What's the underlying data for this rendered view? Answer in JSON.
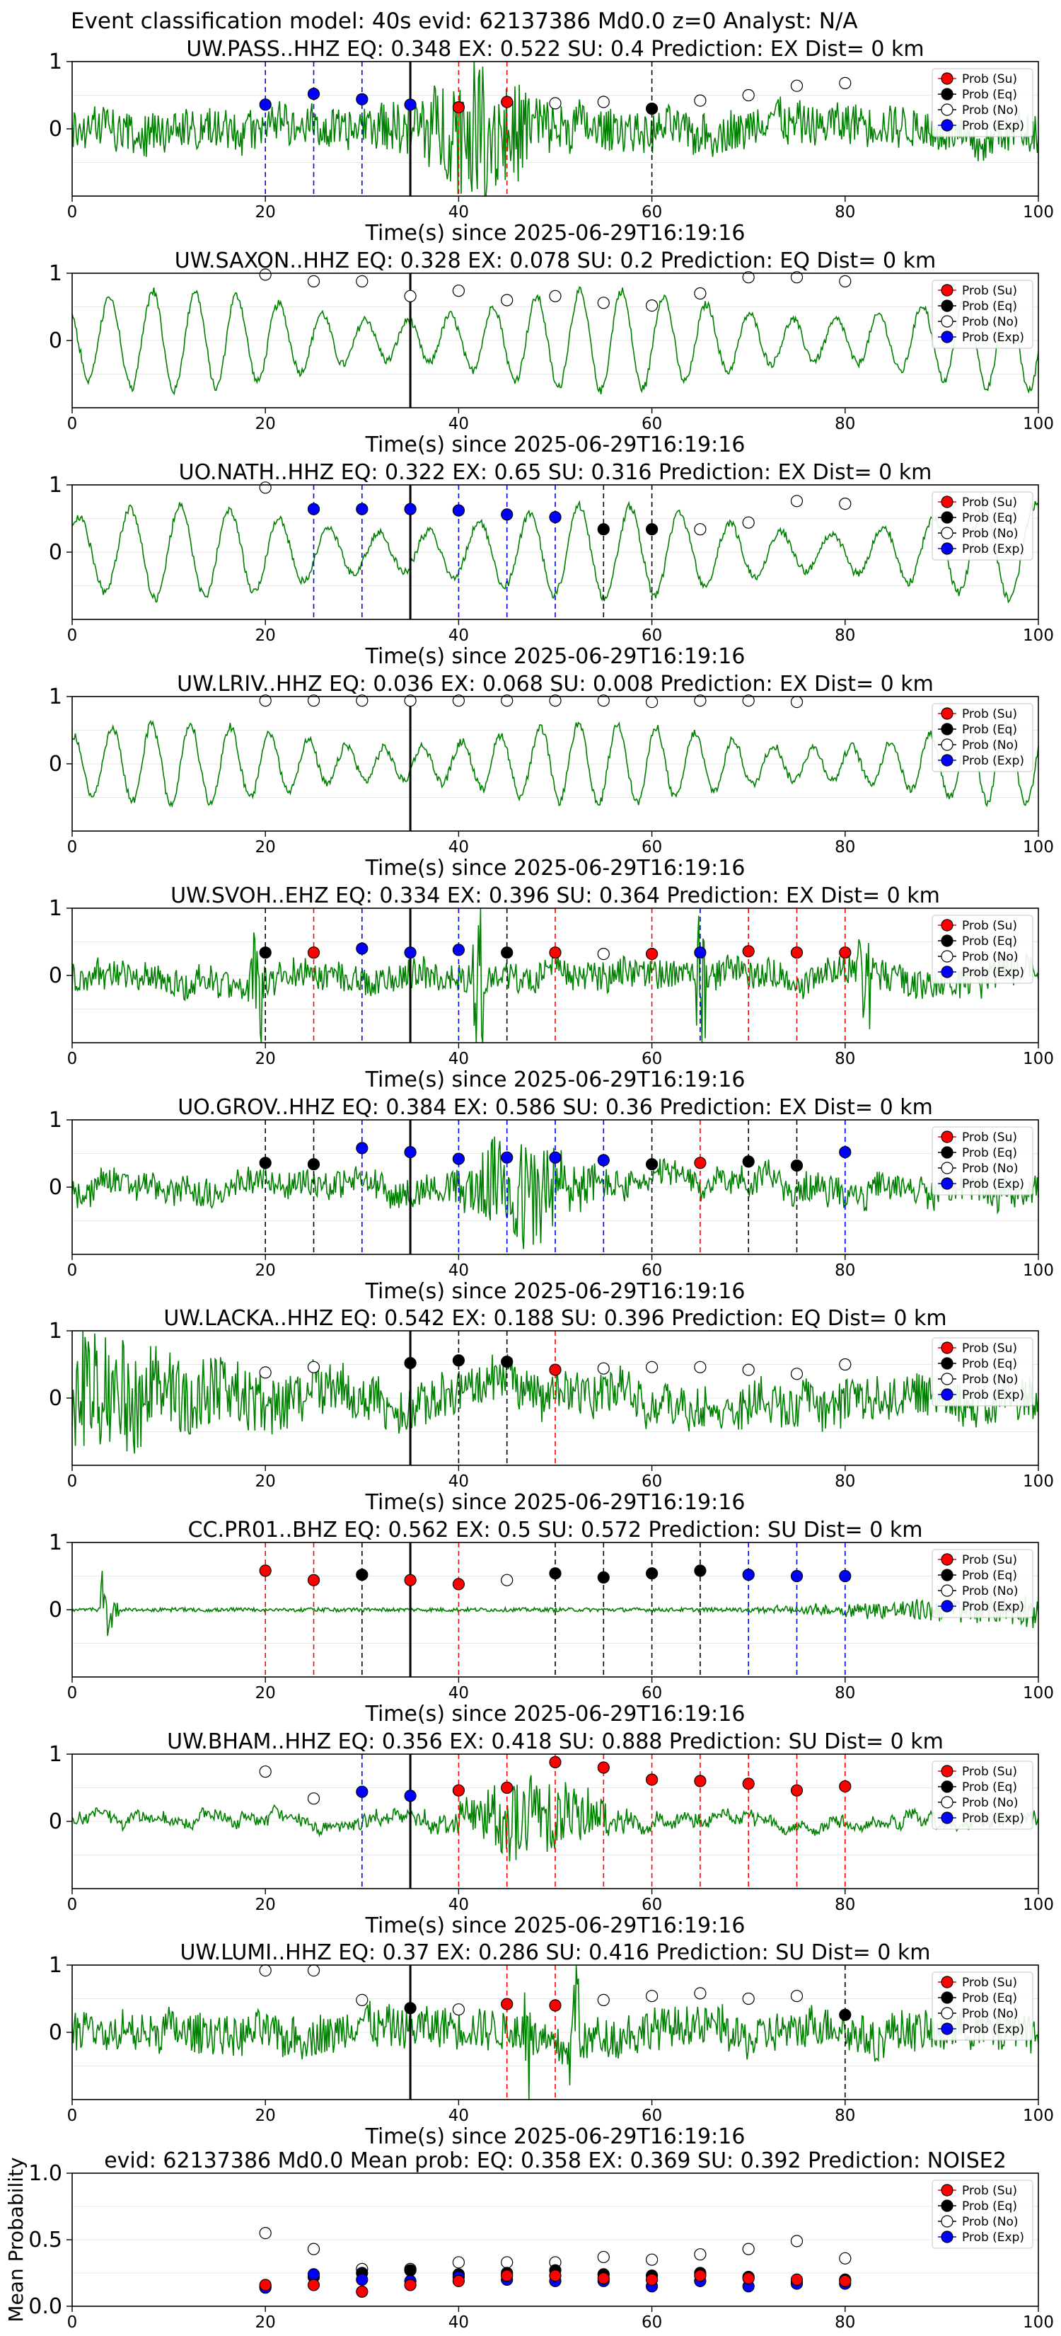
{
  "figure": {
    "suptitle": "Event classification model: 40s evid: 62137386 Md0.0 z=0 Analyst: N/A",
    "xlabel": "Time(s) since 2025-06-29T16:19:16"
  },
  "legend": {
    "su": "Prob (Su)",
    "eq": "Prob (Eq)",
    "no": "Prob (No)",
    "exp": "Prob (Exp)"
  },
  "colors": {
    "trace": "#008000",
    "su": "#ff0000",
    "eq": "#000000",
    "no": "#ffffff",
    "exp": "#0000ff",
    "vline_su": "#ff0000",
    "vline_eq": "#000000",
    "vline_exp": "#0000ff",
    "onset": "#000000"
  },
  "chart_data": [
    {
      "type": "line",
      "title": "UW.PASS..HHZ   EQ: 0.348   EX: 0.522   SU: 0.4   Prediction: EX    Dist= 0 km",
      "xlim": [
        0,
        100
      ],
      "xticks": [
        0,
        20,
        40,
        60,
        80,
        100
      ],
      "ylim": [
        -1,
        1
      ],
      "yticks": [
        0,
        1
      ],
      "onset": 35,
      "trace": {
        "seed": 11,
        "style": "burst",
        "amp": 0.3,
        "burst_center": 42,
        "burst_width": 6,
        "burst_gain": 2.4
      },
      "points": [
        {
          "x": 20,
          "y": 0.36,
          "cls": "exp"
        },
        {
          "x": 25,
          "y": 0.52,
          "cls": "exp"
        },
        {
          "x": 30,
          "y": 0.44,
          "cls": "exp"
        },
        {
          "x": 35,
          "y": 0.36,
          "cls": "exp"
        },
        {
          "x": 40,
          "y": 0.32,
          "cls": "su"
        },
        {
          "x": 45,
          "y": 0.4,
          "cls": "su"
        },
        {
          "x": 50,
          "y": 0.38,
          "cls": "no"
        },
        {
          "x": 55,
          "y": 0.4,
          "cls": "no"
        },
        {
          "x": 60,
          "y": 0.3,
          "cls": "eq"
        },
        {
          "x": 65,
          "y": 0.42,
          "cls": "no"
        },
        {
          "x": 70,
          "y": 0.5,
          "cls": "no"
        },
        {
          "x": 75,
          "y": 0.64,
          "cls": "no"
        },
        {
          "x": 80,
          "y": 0.68,
          "cls": "no"
        }
      ]
    },
    {
      "type": "line",
      "title": "UW.SAXON..HHZ   EQ: 0.328   EX: 0.078   SU: 0.2   Prediction: EQ    Dist= 0 km",
      "xlim": [
        0,
        100
      ],
      "xticks": [
        0,
        20,
        40,
        60,
        80,
        100
      ],
      "ylim": [
        -1,
        1
      ],
      "yticks": [
        0,
        1
      ],
      "onset": 35,
      "trace": {
        "seed": 23,
        "style": "wave",
        "amp": 0.75,
        "period": 4.4
      },
      "points": [
        {
          "x": 20,
          "y": 0.98,
          "cls": "no"
        },
        {
          "x": 25,
          "y": 0.88,
          "cls": "no"
        },
        {
          "x": 30,
          "y": 0.88,
          "cls": "no"
        },
        {
          "x": 35,
          "y": 0.66,
          "cls": "no"
        },
        {
          "x": 40,
          "y": 0.74,
          "cls": "no"
        },
        {
          "x": 45,
          "y": 0.6,
          "cls": "no"
        },
        {
          "x": 50,
          "y": 0.66,
          "cls": "no"
        },
        {
          "x": 55,
          "y": 0.56,
          "cls": "no"
        },
        {
          "x": 60,
          "y": 0.52,
          "cls": "no"
        },
        {
          "x": 65,
          "y": 0.7,
          "cls": "no"
        },
        {
          "x": 70,
          "y": 0.94,
          "cls": "no"
        },
        {
          "x": 75,
          "y": 0.94,
          "cls": "no"
        },
        {
          "x": 80,
          "y": 0.88,
          "cls": "no"
        }
      ]
    },
    {
      "type": "line",
      "title": "UO.NATH..HHZ   EQ: 0.322   EX: 0.65   SU: 0.316   Prediction: EX    Dist= 0 km",
      "xlim": [
        0,
        100
      ],
      "xticks": [
        0,
        20,
        40,
        60,
        80,
        100
      ],
      "ylim": [
        -1,
        1
      ],
      "yticks": [
        0,
        1
      ],
      "onset": 35,
      "trace": {
        "seed": 37,
        "style": "wave",
        "amp": 0.7,
        "period": 5.2
      },
      "points": [
        {
          "x": 20,
          "y": 0.96,
          "cls": "no"
        },
        {
          "x": 25,
          "y": 0.64,
          "cls": "exp"
        },
        {
          "x": 30,
          "y": 0.64,
          "cls": "exp"
        },
        {
          "x": 35,
          "y": 0.64,
          "cls": "exp"
        },
        {
          "x": 40,
          "y": 0.62,
          "cls": "exp"
        },
        {
          "x": 45,
          "y": 0.56,
          "cls": "exp"
        },
        {
          "x": 50,
          "y": 0.52,
          "cls": "exp"
        },
        {
          "x": 55,
          "y": 0.34,
          "cls": "eq"
        },
        {
          "x": 60,
          "y": 0.34,
          "cls": "eq"
        },
        {
          "x": 65,
          "y": 0.34,
          "cls": "no"
        },
        {
          "x": 70,
          "y": 0.44,
          "cls": "no"
        },
        {
          "x": 75,
          "y": 0.76,
          "cls": "no"
        },
        {
          "x": 80,
          "y": 0.72,
          "cls": "no"
        }
      ]
    },
    {
      "type": "line",
      "title": "UW.LRIV..HHZ   EQ: 0.036   EX: 0.068   SU: 0.008   Prediction: EX    Dist= 0 km",
      "xlim": [
        0,
        100
      ],
      "xticks": [
        0,
        20,
        40,
        60,
        80,
        100
      ],
      "ylim": [
        -1,
        1
      ],
      "yticks": [
        0,
        1
      ],
      "onset": 35,
      "trace": {
        "seed": 41,
        "style": "wave",
        "amp": 0.6,
        "period": 4.0
      },
      "points": [
        {
          "x": 20,
          "y": 0.94,
          "cls": "no"
        },
        {
          "x": 25,
          "y": 0.94,
          "cls": "no"
        },
        {
          "x": 30,
          "y": 0.94,
          "cls": "no"
        },
        {
          "x": 35,
          "y": 0.94,
          "cls": "no"
        },
        {
          "x": 40,
          "y": 0.94,
          "cls": "no"
        },
        {
          "x": 45,
          "y": 0.94,
          "cls": "no"
        },
        {
          "x": 50,
          "y": 0.94,
          "cls": "no"
        },
        {
          "x": 55,
          "y": 0.94,
          "cls": "no"
        },
        {
          "x": 60,
          "y": 0.92,
          "cls": "no"
        },
        {
          "x": 65,
          "y": 0.94,
          "cls": "no"
        },
        {
          "x": 70,
          "y": 0.94,
          "cls": "no"
        },
        {
          "x": 75,
          "y": 0.92,
          "cls": "no"
        }
      ]
    },
    {
      "type": "line",
      "title": "UW.SVOH..EHZ   EQ: 0.334   EX: 0.396   SU: 0.364   Prediction: EX    Dist= 0 km",
      "xlim": [
        0,
        100
      ],
      "xticks": [
        0,
        20,
        40,
        60,
        80,
        100
      ],
      "ylim": [
        -1,
        1
      ],
      "yticks": [
        0,
        1
      ],
      "onset": 35,
      "trace": {
        "seed": 53,
        "style": "noise",
        "amp": 0.22,
        "spikes": [
          19,
          42,
          65,
          82
        ]
      },
      "points": [
        {
          "x": 20,
          "y": 0.34,
          "cls": "eq"
        },
        {
          "x": 25,
          "y": 0.34,
          "cls": "su"
        },
        {
          "x": 30,
          "y": 0.4,
          "cls": "exp"
        },
        {
          "x": 35,
          "y": 0.34,
          "cls": "exp"
        },
        {
          "x": 40,
          "y": 0.38,
          "cls": "exp"
        },
        {
          "x": 45,
          "y": 0.34,
          "cls": "eq"
        },
        {
          "x": 50,
          "y": 0.34,
          "cls": "su"
        },
        {
          "x": 55,
          "y": 0.32,
          "cls": "no"
        },
        {
          "x": 60,
          "y": 0.32,
          "cls": "su"
        },
        {
          "x": 65,
          "y": 0.34,
          "cls": "exp"
        },
        {
          "x": 70,
          "y": 0.36,
          "cls": "su"
        },
        {
          "x": 75,
          "y": 0.34,
          "cls": "su"
        },
        {
          "x": 80,
          "y": 0.34,
          "cls": "su"
        }
      ]
    },
    {
      "type": "line",
      "title": "UO.GROV..HHZ   EQ: 0.384   EX: 0.586   SU: 0.36   Prediction: EX    Dist= 0 km",
      "xlim": [
        0,
        100
      ],
      "xticks": [
        0,
        20,
        40,
        60,
        80,
        100
      ],
      "ylim": [
        -1,
        1
      ],
      "yticks": [
        0,
        1
      ],
      "onset": 35,
      "trace": {
        "seed": 67,
        "style": "burst",
        "amp": 0.2,
        "burst_center": 47,
        "burst_width": 5,
        "burst_gain": 3.5
      },
      "points": [
        {
          "x": 20,
          "y": 0.36,
          "cls": "eq"
        },
        {
          "x": 25,
          "y": 0.34,
          "cls": "eq"
        },
        {
          "x": 30,
          "y": 0.58,
          "cls": "exp"
        },
        {
          "x": 35,
          "y": 0.52,
          "cls": "exp"
        },
        {
          "x": 40,
          "y": 0.42,
          "cls": "exp"
        },
        {
          "x": 45,
          "y": 0.44,
          "cls": "exp"
        },
        {
          "x": 50,
          "y": 0.44,
          "cls": "exp"
        },
        {
          "x": 55,
          "y": 0.4,
          "cls": "exp"
        },
        {
          "x": 60,
          "y": 0.34,
          "cls": "eq"
        },
        {
          "x": 65,
          "y": 0.36,
          "cls": "su"
        },
        {
          "x": 70,
          "y": 0.38,
          "cls": "eq"
        },
        {
          "x": 75,
          "y": 0.32,
          "cls": "eq"
        },
        {
          "x": 80,
          "y": 0.52,
          "cls": "exp"
        }
      ]
    },
    {
      "type": "line",
      "title": "UW.LACKA..HHZ   EQ: 0.542   EX: 0.188   SU: 0.396   Prediction: EQ    Dist= 0 km",
      "xlim": [
        0,
        100
      ],
      "xticks": [
        0,
        20,
        40,
        60,
        80,
        100
      ],
      "ylim": [
        -1,
        1
      ],
      "yticks": [
        0,
        1
      ],
      "onset": 35,
      "trace": {
        "seed": 79,
        "style": "decay",
        "amp": 0.7
      },
      "points": [
        {
          "x": 20,
          "y": 0.38,
          "cls": "no"
        },
        {
          "x": 25,
          "y": 0.46,
          "cls": "no"
        },
        {
          "x": 35,
          "y": 0.52,
          "cls": "eq"
        },
        {
          "x": 40,
          "y": 0.56,
          "cls": "eq"
        },
        {
          "x": 45,
          "y": 0.54,
          "cls": "eq"
        },
        {
          "x": 50,
          "y": 0.42,
          "cls": "su"
        },
        {
          "x": 55,
          "y": 0.44,
          "cls": "no"
        },
        {
          "x": 60,
          "y": 0.46,
          "cls": "no"
        },
        {
          "x": 65,
          "y": 0.46,
          "cls": "no"
        },
        {
          "x": 70,
          "y": 0.42,
          "cls": "no"
        },
        {
          "x": 75,
          "y": 0.36,
          "cls": "no"
        },
        {
          "x": 80,
          "y": 0.5,
          "cls": "no"
        }
      ]
    },
    {
      "type": "line",
      "title": "CC.PR01..BHZ   EQ: 0.562   EX: 0.5   SU: 0.572   Prediction: SU    Dist= 0 km",
      "xlim": [
        0,
        100
      ],
      "xticks": [
        0,
        20,
        40,
        60,
        80,
        100
      ],
      "ylim": [
        -1,
        1
      ],
      "yticks": [
        0,
        1
      ],
      "onset": 35,
      "trace": {
        "seed": 83,
        "style": "flat",
        "amp": 0.03
      },
      "points": [
        {
          "x": 20,
          "y": 0.58,
          "cls": "su"
        },
        {
          "x": 25,
          "y": 0.44,
          "cls": "su"
        },
        {
          "x": 30,
          "y": 0.52,
          "cls": "eq"
        },
        {
          "x": 35,
          "y": 0.44,
          "cls": "su"
        },
        {
          "x": 40,
          "y": 0.38,
          "cls": "su"
        },
        {
          "x": 45,
          "y": 0.44,
          "cls": "no"
        },
        {
          "x": 50,
          "y": 0.54,
          "cls": "eq"
        },
        {
          "x": 55,
          "y": 0.48,
          "cls": "eq"
        },
        {
          "x": 60,
          "y": 0.54,
          "cls": "eq"
        },
        {
          "x": 65,
          "y": 0.58,
          "cls": "eq"
        },
        {
          "x": 70,
          "y": 0.52,
          "cls": "exp"
        },
        {
          "x": 75,
          "y": 0.5,
          "cls": "exp"
        },
        {
          "x": 80,
          "y": 0.5,
          "cls": "exp"
        }
      ]
    },
    {
      "type": "line",
      "title": "UW.BHAM..HHZ   EQ: 0.356   EX: 0.418   SU: 0.888   Prediction: SU    Dist= 0 km",
      "xlim": [
        0,
        100
      ],
      "xticks": [
        0,
        20,
        40,
        60,
        80,
        100
      ],
      "ylim": [
        -1,
        1
      ],
      "yticks": [
        0,
        1
      ],
      "onset": 35,
      "trace": {
        "seed": 97,
        "style": "burst",
        "amp": 0.08,
        "burst_center": 48,
        "burst_width": 7,
        "burst_gain": 7
      },
      "points": [
        {
          "x": 20,
          "y": 0.74,
          "cls": "no"
        },
        {
          "x": 25,
          "y": 0.34,
          "cls": "no"
        },
        {
          "x": 30,
          "y": 0.44,
          "cls": "exp"
        },
        {
          "x": 35,
          "y": 0.38,
          "cls": "exp"
        },
        {
          "x": 40,
          "y": 0.46,
          "cls": "su"
        },
        {
          "x": 45,
          "y": 0.5,
          "cls": "su"
        },
        {
          "x": 50,
          "y": 0.88,
          "cls": "su"
        },
        {
          "x": 55,
          "y": 0.8,
          "cls": "su"
        },
        {
          "x": 60,
          "y": 0.62,
          "cls": "su"
        },
        {
          "x": 65,
          "y": 0.6,
          "cls": "su"
        },
        {
          "x": 70,
          "y": 0.56,
          "cls": "su"
        },
        {
          "x": 75,
          "y": 0.46,
          "cls": "su"
        },
        {
          "x": 80,
          "y": 0.52,
          "cls": "su"
        }
      ]
    },
    {
      "type": "line",
      "title": "UW.LUMI..HHZ   EQ: 0.37   EX: 0.286   SU: 0.416   Prediction: SU    Dist= 0 km",
      "xlim": [
        0,
        100
      ],
      "xticks": [
        0,
        20,
        40,
        60,
        80,
        100
      ],
      "ylim": [
        -1,
        1
      ],
      "yticks": [
        0,
        1
      ],
      "onset": 35,
      "trace": {
        "seed": 103,
        "style": "noise",
        "amp": 0.3,
        "spikes": [
          47,
          52
        ]
      },
      "points": [
        {
          "x": 20,
          "y": 0.92,
          "cls": "no"
        },
        {
          "x": 25,
          "y": 0.92,
          "cls": "no"
        },
        {
          "x": 30,
          "y": 0.48,
          "cls": "no"
        },
        {
          "x": 35,
          "y": 0.36,
          "cls": "eq"
        },
        {
          "x": 40,
          "y": 0.34,
          "cls": "no"
        },
        {
          "x": 45,
          "y": 0.42,
          "cls": "su"
        },
        {
          "x": 50,
          "y": 0.4,
          "cls": "su"
        },
        {
          "x": 55,
          "y": 0.48,
          "cls": "no"
        },
        {
          "x": 60,
          "y": 0.54,
          "cls": "no"
        },
        {
          "x": 65,
          "y": 0.58,
          "cls": "no"
        },
        {
          "x": 70,
          "y": 0.5,
          "cls": "no"
        },
        {
          "x": 75,
          "y": 0.54,
          "cls": "no"
        },
        {
          "x": 80,
          "y": 0.26,
          "cls": "eq"
        }
      ]
    },
    {
      "type": "scatter",
      "title": "evid: 62137386  Md0.0   Mean prob:   EQ: 0.358   EX: 0.369   SU: 0.392   Prediction: NOISE2",
      "ylabel": "Mean Probability",
      "xlim": [
        0,
        100
      ],
      "xticks": [
        0,
        20,
        40,
        60,
        80,
        100
      ],
      "ylim": [
        0,
        1
      ],
      "yticks": [
        0.0,
        0.5,
        1.0
      ],
      "ytick_labels": [
        "0.0",
        "0.5",
        "1.0"
      ],
      "x": [
        20,
        25,
        30,
        35,
        40,
        45,
        50,
        55,
        60,
        65,
        70,
        75,
        80
      ],
      "series": [
        {
          "cls": "no",
          "values": [
            0.55,
            0.43,
            0.28,
            0.28,
            0.33,
            0.33,
            0.33,
            0.37,
            0.35,
            0.39,
            0.43,
            0.49,
            0.36
          ]
        },
        {
          "cls": "eq",
          "values": [
            0.15,
            0.22,
            0.25,
            0.27,
            0.24,
            0.25,
            0.27,
            0.24,
            0.23,
            0.25,
            0.22,
            0.18,
            0.2
          ]
        },
        {
          "cls": "exp",
          "values": [
            0.14,
            0.24,
            0.2,
            0.19,
            0.22,
            0.2,
            0.19,
            0.19,
            0.15,
            0.19,
            0.15,
            0.17,
            0.17
          ]
        },
        {
          "cls": "su",
          "values": [
            0.16,
            0.16,
            0.11,
            0.16,
            0.19,
            0.23,
            0.23,
            0.21,
            0.2,
            0.23,
            0.21,
            0.2,
            0.19
          ]
        }
      ]
    }
  ]
}
